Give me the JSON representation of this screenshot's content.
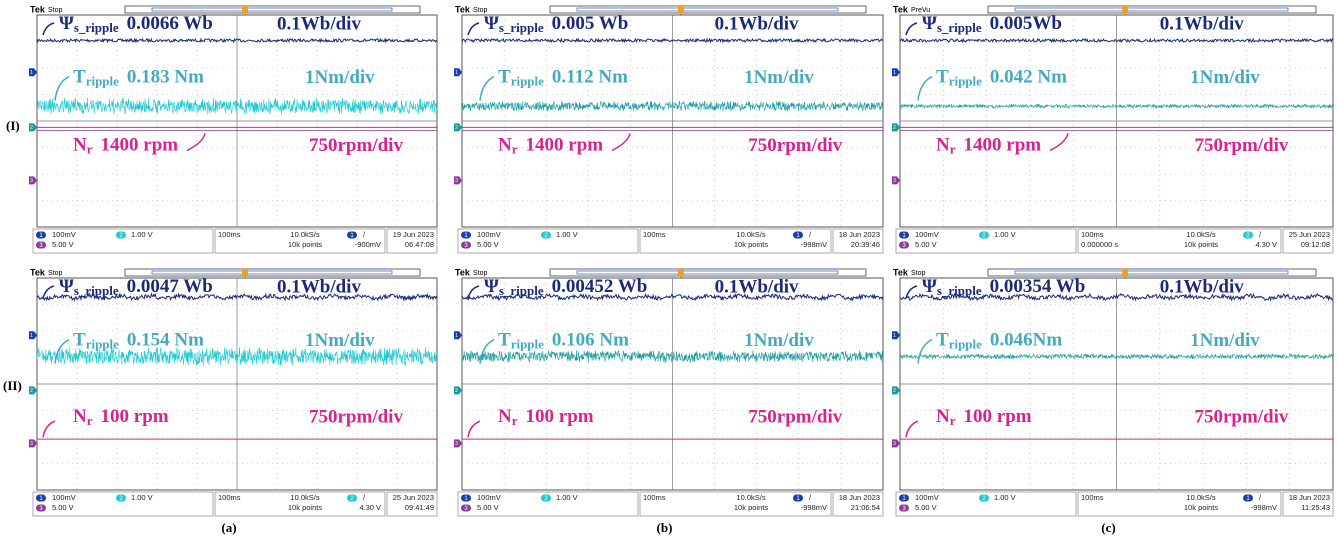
{
  "row_labels": [
    "(I)",
    "(II)"
  ],
  "column_labels": [
    "(a)",
    "(b)",
    "(c)"
  ],
  "channel_numbers": [
    "1",
    "2",
    "3"
  ],
  "panels": [
    {
      "header": {
        "brand": "Tek",
        "state": "Stop"
      },
      "flux": {
        "symbol": "Ψ",
        "sub": "s_ripple",
        "value": "0.0066 Wb",
        "scale": "0.1Wb/div"
      },
      "torque": {
        "symbol": "T",
        "sub": "ripple",
        "value": "0.183 Nm",
        "scale": "1Nm/div"
      },
      "speed": {
        "symbol": "N",
        "sub": "r",
        "value": "1400 rpm",
        "scale": "750rpm/div"
      },
      "status": {
        "ch1": "100mV",
        "ch2": "1.00 V",
        "ch3": "5.00 V",
        "timebase": "100ms",
        "rate": "10.0kS/s",
        "points": "10k points",
        "trigger_channel": "1",
        "trigger_slope": "/",
        "trigger_level": "-900mV",
        "date": "19 Jun 2023",
        "time": "06:47:08"
      }
    },
    {
      "header": {
        "brand": "Tek",
        "state": "Stop"
      },
      "flux": {
        "symbol": "Ψ",
        "sub": "s_ripple",
        "value": "0.005 Wb",
        "scale": "0.1Wb/div"
      },
      "torque": {
        "symbol": "T",
        "sub": "ripple",
        "value": "0.112 Nm",
        "scale": "1Nm/div"
      },
      "speed": {
        "symbol": "N",
        "sub": "r",
        "value": "1400 rpm",
        "scale": "750rpm/div"
      },
      "status": {
        "ch1": "100mV",
        "ch2": "1.00 V",
        "ch3": "5.00 V",
        "timebase": "100ms",
        "rate": "10.0kS/s",
        "points": "10k points",
        "trigger_channel": "1",
        "trigger_slope": "/",
        "trigger_level": "-998mV",
        "date": "18 Jun 2023",
        "time": "20:39:46"
      }
    },
    {
      "header": {
        "brand": "Tek",
        "state": "PreVu"
      },
      "flux": {
        "symbol": "Ψ",
        "sub": "s_ripple",
        "value": "0.005Wb",
        "scale": "0.1Wb/div"
      },
      "torque": {
        "symbol": "T",
        "sub": "ripple",
        "value": "0.042 Nm",
        "scale": "1Nm/div"
      },
      "speed": {
        "symbol": "N",
        "sub": "r",
        "value": "1400 rpm",
        "scale": "750rpm/div"
      },
      "status": {
        "ch1": "100mV",
        "ch2": "1.00 V",
        "ch3": "5.00 V",
        "timebase": "100ms",
        "delay": "0.000000 s",
        "rate": "10.0kS/s",
        "points": "10k points",
        "trigger_channel": "2",
        "trigger_slope": "/",
        "trigger_level": "4.30 V",
        "date": "25 Jun 2023",
        "time": "09:12:08"
      }
    },
    {
      "header": {
        "brand": "Tek",
        "state": "Stop"
      },
      "flux": {
        "symbol": "Ψ",
        "sub": "s_ripple",
        "value": "0.0047 Wb",
        "scale": "0.1Wb/div"
      },
      "torque": {
        "symbol": "T",
        "sub": "ripple",
        "value": "0.154 Nm",
        "scale": "1Nm/div"
      },
      "speed": {
        "symbol": "N",
        "sub": "r",
        "value": "100 rpm",
        "scale": "750rpm/div"
      },
      "status": {
        "ch1": "100mV",
        "ch2": "1.00 V",
        "ch3": "5.00 V",
        "timebase": "100ms",
        "rate": "10.0kS/s",
        "points": "10k points",
        "trigger_channel": "2",
        "trigger_slope": "/",
        "trigger_level": "4.30 V",
        "date": "25 Jun 2023",
        "time": "09:41:49"
      }
    },
    {
      "header": {
        "brand": "Tek",
        "state": "Stop"
      },
      "flux": {
        "symbol": "Ψ",
        "sub": "s_ripple",
        "value": "0.00452 Wb",
        "scale": "0.1Wb/div"
      },
      "torque": {
        "symbol": "T",
        "sub": "ripple",
        "value": "0.106 Nm",
        "scale": "1Nm/div"
      },
      "speed": {
        "symbol": "N",
        "sub": "r",
        "value": "100 rpm",
        "scale": "750rpm/div"
      },
      "status": {
        "ch1": "100mV",
        "ch2": "1.00 V",
        "ch3": "5.00 V",
        "timebase": "100ms",
        "rate": "10.0kS/s",
        "points": "10k points",
        "trigger_channel": "1",
        "trigger_slope": "/",
        "trigger_level": "-998mV",
        "date": "18 Jun 2023",
        "time": "21:06:54"
      }
    },
    {
      "header": {
        "brand": "Tek",
        "state": "Stop"
      },
      "flux": {
        "symbol": "Ψ",
        "sub": "s_ripple",
        "value": "0.00354 Wb",
        "scale": "0.1Wb/div"
      },
      "torque": {
        "symbol": "T",
        "sub": "ripple",
        "value": "0.046Nm",
        "scale": "1Nm/div"
      },
      "speed": {
        "symbol": "N",
        "sub": "r",
        "value": "100 rpm",
        "scale": "750rpm/div"
      },
      "status": {
        "ch1": "100mV",
        "ch2": "1.00 V",
        "ch3": "5.00 V",
        "timebase": "100ms",
        "rate": "10.0kS/s",
        "points": "10k points",
        "trigger_channel": "1",
        "trigger_slope": "/",
        "trigger_level": "-998mV",
        "date": "18 Jun 2023",
        "time": "11:25:43"
      }
    }
  ]
}
